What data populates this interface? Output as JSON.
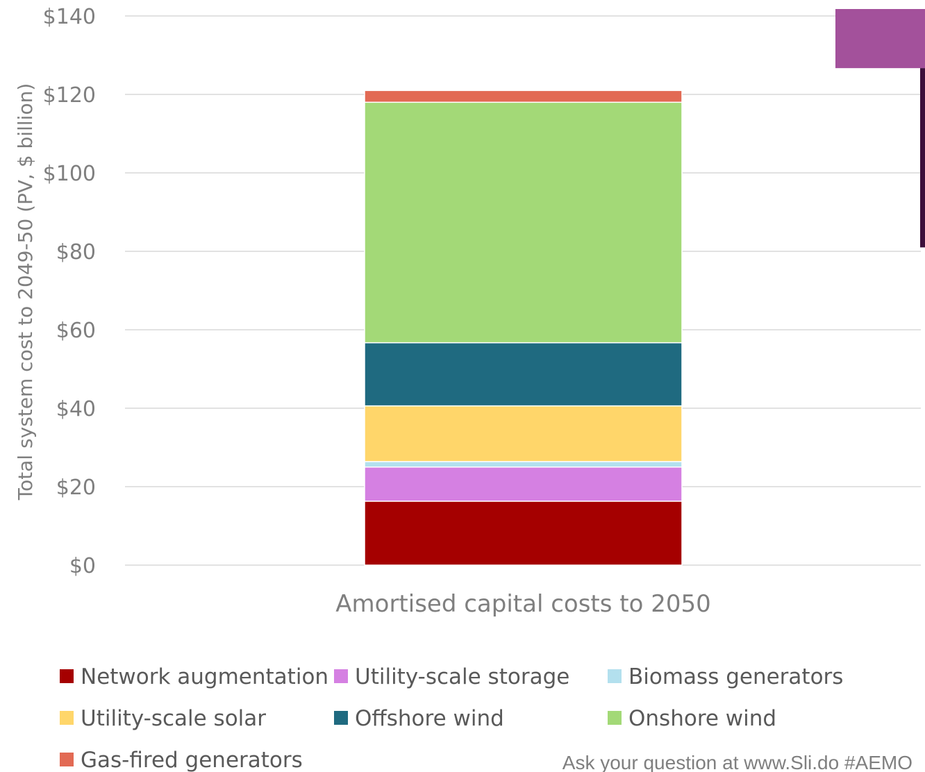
{
  "chart_data": {
    "type": "bar",
    "stacked": true,
    "categories": [
      "Amortised capital costs to 2050"
    ],
    "ylabel": "Total system cost to 2049-50 (PV, $ billion)",
    "xlabel": "",
    "ylim": [
      0,
      140
    ],
    "yticks": [
      0,
      20,
      40,
      60,
      80,
      100,
      120,
      140
    ],
    "ytick_labels": [
      "$0",
      "$20",
      "$40",
      "$60",
      "$80",
      "$100",
      "$120",
      "$140"
    ],
    "grid": true,
    "legend_position": "bottom",
    "series": [
      {
        "name": "Network augmentation",
        "color": "#a50000",
        "values": [
          16.3
        ]
      },
      {
        "name": "Utility-scale storage",
        "color": "#d580e2",
        "values": [
          8.7
        ]
      },
      {
        "name": "Biomass generators",
        "color": "#b3e0ee",
        "values": [
          1.4
        ]
      },
      {
        "name": "Utility-scale solar",
        "color": "#ffd66a",
        "values": [
          14.2
        ]
      },
      {
        "name": "Offshore wind",
        "color": "#1f6a80",
        "values": [
          16.1
        ]
      },
      {
        "name": "Onshore wind",
        "color": "#a3d977",
        "values": [
          61.3
        ]
      },
      {
        "name": "Gas-fired generators",
        "color": "#e26a54",
        "values": [
          3.0
        ]
      }
    ],
    "partial_bar": {
      "color": "#a3519b",
      "range": [
        126.7,
        140
      ]
    }
  },
  "footer": "Ask your question at www.Sli.do #AEMO"
}
